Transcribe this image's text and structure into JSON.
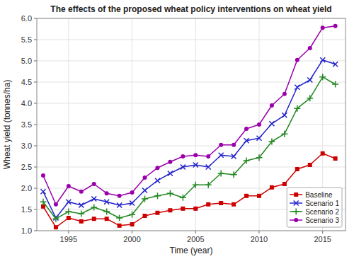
{
  "chart_data": {
    "type": "line",
    "title": "The effects of the proposed wheat policy interventions on wheat yield",
    "xlabel": "Time (year)",
    "ylabel": "Wheat yield (tonnes/ha)",
    "x": [
      1993,
      1994,
      1995,
      1996,
      1997,
      1998,
      1999,
      2000,
      2001,
      2002,
      2003,
      2004,
      2005,
      2006,
      2007,
      2008,
      2009,
      2010,
      2011,
      2012,
      2013,
      2014,
      2015,
      2016
    ],
    "xlim": [
      1992.5,
      2016.8
    ],
    "xticks": [
      1995,
      2000,
      2005,
      2010,
      2015
    ],
    "ylim": [
      1.0,
      6.0
    ],
    "yticks": [
      {
        "value": 1.0,
        "label": "1.0"
      },
      1.5,
      {
        "value": 2.0,
        "label": "2.0"
      },
      2.5,
      {
        "value": 3.0,
        "label": "3.0"
      },
      3.5,
      {
        "value": 4.0,
        "label": "4.0"
      },
      4.5,
      {
        "value": 5.0,
        "label": "5.0"
      },
      5.5,
      {
        "value": 6.0,
        "label": "6.0"
      }
    ],
    "grid": true,
    "legend": "lower right",
    "series": [
      {
        "name": "Baseline",
        "color": "#cc0000",
        "marker": "square",
        "values": [
          1.57,
          1.08,
          1.3,
          1.22,
          1.28,
          1.28,
          1.12,
          1.15,
          1.35,
          1.42,
          1.48,
          1.52,
          1.52,
          1.62,
          1.65,
          1.62,
          1.82,
          1.82,
          2.02,
          2.1,
          2.45,
          2.55,
          2.82,
          2.7
        ]
      },
      {
        "name": "Scenario 1",
        "color": "#2222cc",
        "marker": "x",
        "values": [
          1.92,
          1.3,
          1.68,
          1.6,
          1.75,
          1.68,
          1.6,
          1.65,
          1.95,
          2.18,
          2.35,
          2.5,
          2.55,
          2.5,
          2.78,
          2.75,
          3.12,
          3.18,
          3.52,
          3.72,
          4.38,
          4.55,
          5.02,
          4.92
        ]
      },
      {
        "name": "Scenario 2",
        "color": "#228822",
        "marker": "plus",
        "values": [
          1.68,
          1.28,
          1.45,
          1.4,
          1.55,
          1.45,
          1.3,
          1.38,
          1.75,
          1.82,
          1.88,
          1.78,
          2.08,
          2.08,
          2.35,
          2.32,
          2.65,
          2.72,
          3.1,
          3.28,
          3.88,
          4.12,
          4.62,
          4.45
        ]
      },
      {
        "name": "Scenario 3",
        "color": "#9900aa",
        "marker": "circle",
        "values": [
          2.3,
          1.62,
          2.05,
          1.92,
          2.1,
          1.88,
          1.82,
          1.9,
          2.25,
          2.48,
          2.62,
          2.75,
          2.78,
          2.75,
          3.02,
          3.02,
          3.4,
          3.5,
          3.95,
          4.22,
          5.02,
          5.3,
          5.78,
          5.82
        ]
      }
    ]
  }
}
